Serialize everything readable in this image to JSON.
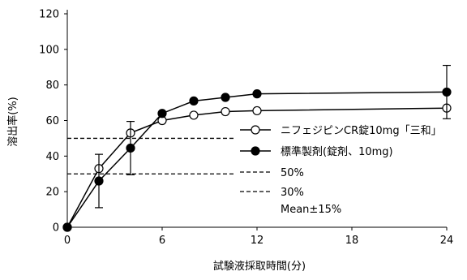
{
  "chart_data": {
    "type": "line",
    "xlabel": "試験液採取時間(分)",
    "ylabel": "溶出率(%)",
    "xlim": [
      0,
      24
    ],
    "ylim": [
      0,
      120
    ],
    "xticks": [
      0,
      6,
      12,
      18,
      24
    ],
    "yticks": [
      0,
      20,
      40,
      60,
      80,
      100,
      120
    ],
    "x_tick_labels": [
      "0",
      "6",
      "12",
      "18",
      "24"
    ],
    "y_tick_labels": [
      "0",
      "20",
      "40",
      "60",
      "80",
      "100",
      "120"
    ],
    "grid": false,
    "legend_position": "right",
    "series": [
      {
        "name": "ニフェジピンCR錠10mg「三和」",
        "marker": "open-circle",
        "color": "#000000",
        "x": [
          0,
          2,
          4,
          6,
          8,
          10,
          12,
          24
        ],
        "y": [
          0,
          33,
          53,
          60,
          63,
          65,
          65.5,
          67
        ]
      },
      {
        "name": "標準製剤(錠剤、10mg)",
        "marker": "filled-circle",
        "color": "#000000",
        "x": [
          0,
          2,
          4,
          6,
          8,
          10,
          12,
          24
        ],
        "y": [
          0,
          26,
          44.5,
          64,
          71,
          73,
          75,
          76
        ],
        "error_bars": [
          {
            "x": 2,
            "low": 11,
            "high": 41
          },
          {
            "x": 4,
            "low": 29.5,
            "high": 59.5
          },
          {
            "x": 24,
            "low": 61,
            "high": 91
          }
        ]
      }
    ],
    "reference_lines": [
      {
        "name": "50%",
        "y": 50,
        "style": "dashed"
      },
      {
        "name": "30%",
        "y": 30,
        "style": "dashed"
      }
    ],
    "legend_extra": "Mean±15%"
  }
}
